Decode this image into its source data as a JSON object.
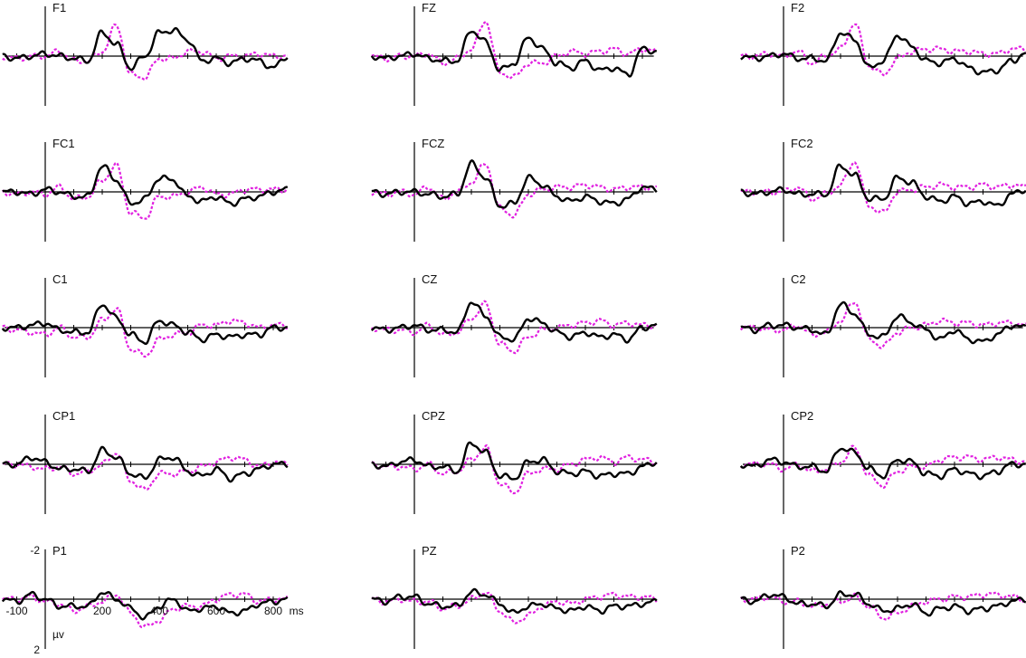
{
  "chart_data": {
    "type": "line",
    "layout": "5x3 grid of ERP panels",
    "colors": {
      "condition_a": "#000000",
      "condition_b": "#e020e0"
    },
    "x_unit": "ms",
    "y_unit": "µv",
    "y_inverted": true,
    "xlim": [
      -100,
      850
    ],
    "ylim": [
      -2,
      2
    ],
    "x_tick_labels": [
      "-100",
      "200",
      "400",
      "600",
      "800"
    ],
    "y_tick_labels": [
      "-2",
      "2"
    ],
    "x_ticks": [
      -100,
      0,
      100,
      200,
      300,
      400,
      500,
      600,
      700,
      800
    ],
    "legend": "none",
    "series_styles": {
      "condition_a": "solid",
      "condition_b": "dotted"
    },
    "channels": [
      "F1",
      "FZ",
      "F2",
      "FC1",
      "FCZ",
      "FC2",
      "C1",
      "CZ",
      "C2",
      "CP1",
      "CPZ",
      "CP2",
      "P1",
      "PZ",
      "P2"
    ],
    "x": [
      -150,
      -100,
      -50,
      0,
      50,
      100,
      150,
      200,
      250,
      300,
      350,
      400,
      450,
      500,
      550,
      600,
      650,
      700,
      750,
      800,
      850
    ],
    "panels": [
      {
        "channel": "F1",
        "condition_a": [
          0,
          0.1,
          0.0,
          -0.1,
          0.0,
          0.1,
          0.2,
          -1.0,
          -0.5,
          0.5,
          0.0,
          -1.0,
          -1.1,
          -0.7,
          0.2,
          0.1,
          0.3,
          0.1,
          0.2,
          0.5,
          0.0
        ],
        "condition_b": [
          0,
          0.1,
          0.0,
          0.0,
          -0.2,
          0.2,
          0.2,
          -0.2,
          -1.3,
          0.8,
          0.9,
          0.1,
          0.1,
          -0.2,
          -0.2,
          0.1,
          0.0,
          0.0,
          -0.1,
          0.0,
          0.0
        ]
      },
      {
        "channel": "FZ",
        "condition_a": [
          0,
          0.1,
          0.0,
          -0.1,
          0.1,
          0.2,
          0.2,
          -1.1,
          -0.6,
          0.6,
          0.3,
          -0.8,
          -0.3,
          0.3,
          0.5,
          0.2,
          0.6,
          0.5,
          0.8,
          -0.3,
          -0.2
        ],
        "condition_b": [
          0,
          0.1,
          0.0,
          0.0,
          -0.1,
          0.3,
          0.1,
          -0.3,
          -1.5,
          0.7,
          0.9,
          0.3,
          0.3,
          0.0,
          -0.2,
          -0.1,
          -0.2,
          -0.3,
          -0.1,
          -0.3,
          -0.2
        ]
      },
      {
        "channel": "F2",
        "condition_a": [
          0,
          0.1,
          0.0,
          -0.1,
          0.1,
          0.1,
          0.2,
          -1.0,
          -0.7,
          0.5,
          0.2,
          -0.9,
          -0.4,
          0.2,
          0.3,
          0.1,
          0.5,
          0.7,
          0.6,
          0.2,
          -0.1
        ],
        "condition_b": [
          0,
          0.0,
          -0.1,
          0.0,
          -0.2,
          0.3,
          0.0,
          -0.3,
          -1.4,
          0.4,
          0.8,
          0.1,
          -0.2,
          -0.3,
          -0.3,
          -0.2,
          -0.2,
          -0.1,
          -0.1,
          -0.3,
          -0.3
        ]
      },
      {
        "channel": "FC1",
        "condition_a": [
          0,
          0.0,
          0.1,
          -0.1,
          0.0,
          0.2,
          0.2,
          -1.1,
          -0.5,
          0.5,
          0.3,
          -0.6,
          -0.5,
          0.2,
          0.4,
          0.2,
          0.5,
          0.3,
          0.2,
          0.0,
          -0.1
        ],
        "condition_b": [
          0,
          0.1,
          0.0,
          0.1,
          -0.2,
          0.3,
          0.2,
          -0.5,
          -1.1,
          0.9,
          1.1,
          0.2,
          0.2,
          0.0,
          -0.2,
          0.1,
          0.1,
          -0.1,
          -0.1,
          -0.1,
          -0.1
        ]
      },
      {
        "channel": "FCZ",
        "condition_a": [
          0,
          0.1,
          0.0,
          0.0,
          0.1,
          0.2,
          0.1,
          -1.2,
          -0.6,
          0.6,
          0.5,
          -0.6,
          -0.3,
          0.2,
          0.4,
          0.2,
          0.4,
          0.5,
          0.3,
          -0.2,
          -0.1
        ],
        "condition_b": [
          0,
          0.1,
          0.0,
          0.1,
          -0.2,
          0.3,
          0.0,
          -0.4,
          -1.2,
          0.7,
          1.0,
          0.1,
          -0.1,
          -0.2,
          -0.2,
          -0.3,
          -0.2,
          -0.1,
          -0.2,
          -0.2,
          -0.2
        ]
      },
      {
        "channel": "FC2",
        "condition_a": [
          0,
          0.1,
          0.0,
          -0.1,
          0.1,
          0.1,
          0.1,
          -1.1,
          -0.7,
          0.3,
          0.3,
          -0.6,
          -0.4,
          0.2,
          0.4,
          0.2,
          0.5,
          0.4,
          0.6,
          0.1,
          -0.1
        ],
        "condition_b": [
          0,
          0.0,
          0.0,
          0.0,
          -0.2,
          0.3,
          0.1,
          -0.3,
          -1.3,
          0.6,
          0.9,
          0.0,
          -0.1,
          -0.2,
          -0.3,
          -0.2,
          -0.2,
          -0.3,
          -0.2,
          -0.3,
          -0.2
        ]
      },
      {
        "channel": "C1",
        "condition_a": [
          0,
          0.0,
          -0.1,
          -0.2,
          0.1,
          0.2,
          0.2,
          -1.0,
          -0.4,
          0.3,
          0.6,
          -0.3,
          -0.1,
          0.2,
          0.5,
          0.3,
          0.4,
          0.3,
          0.3,
          0.0,
          0.0
        ],
        "condition_b": [
          0,
          0.1,
          0.2,
          0.3,
          0.0,
          0.4,
          0.4,
          -0.3,
          -0.8,
          0.9,
          1.2,
          0.5,
          0.3,
          0.2,
          -0.1,
          -0.1,
          -0.3,
          -0.2,
          0.0,
          -0.1,
          -0.1
        ]
      },
      {
        "channel": "CZ",
        "condition_a": [
          0,
          0.1,
          0.0,
          -0.1,
          0.1,
          0.1,
          0.2,
          -1.1,
          -0.5,
          0.4,
          0.5,
          -0.4,
          -0.2,
          0.2,
          0.4,
          0.2,
          0.4,
          0.3,
          0.5,
          0.0,
          -0.1
        ],
        "condition_b": [
          0,
          0.1,
          0.1,
          0.2,
          -0.1,
          0.3,
          0.2,
          -0.4,
          -1.0,
          0.7,
          1.0,
          0.4,
          0.1,
          0.0,
          -0.1,
          -0.2,
          -0.3,
          -0.1,
          -0.2,
          -0.1,
          -0.1
        ]
      },
      {
        "channel": "C2",
        "condition_a": [
          0,
          0.1,
          -0.1,
          -0.1,
          0.0,
          0.1,
          0.3,
          -1.0,
          -0.6,
          0.3,
          0.4,
          -0.5,
          -0.2,
          0.1,
          0.5,
          0.1,
          0.5,
          0.6,
          0.3,
          -0.1,
          0.0
        ],
        "condition_b": [
          0,
          0.0,
          0.1,
          0.1,
          -0.1,
          0.3,
          0.2,
          -0.3,
          -1.1,
          0.5,
          0.8,
          0.2,
          0.0,
          -0.1,
          -0.3,
          -0.2,
          -0.2,
          -0.1,
          -0.2,
          -0.2,
          -0.1
        ]
      },
      {
        "channel": "CP1",
        "condition_a": [
          0,
          0.0,
          -0.3,
          -0.1,
          0.2,
          0.2,
          0.3,
          -0.6,
          -0.3,
          0.4,
          0.6,
          -0.2,
          -0.3,
          0.3,
          0.5,
          0.2,
          0.6,
          0.4,
          0.2,
          0.0,
          0.0
        ],
        "condition_b": [
          0,
          0.0,
          0.1,
          0.2,
          0.1,
          0.4,
          0.3,
          0.0,
          -0.5,
          0.7,
          1.1,
          0.4,
          0.4,
          0.3,
          0.1,
          -0.1,
          -0.3,
          -0.2,
          0.1,
          -0.1,
          0.0
        ]
      },
      {
        "channel": "CPZ",
        "condition_a": [
          0,
          0.1,
          -0.1,
          -0.2,
          0.1,
          0.1,
          0.3,
          -0.9,
          -0.5,
          0.5,
          0.6,
          -0.1,
          -0.2,
          0.3,
          0.4,
          0.3,
          0.5,
          0.4,
          0.4,
          0.1,
          -0.1
        ],
        "condition_b": [
          0,
          0.1,
          0.1,
          0.2,
          0.0,
          0.4,
          0.3,
          -0.2,
          -0.7,
          0.8,
          1.2,
          0.4,
          0.2,
          0.2,
          0.0,
          -0.2,
          -0.3,
          -0.1,
          -0.3,
          -0.2,
          -0.1
        ]
      },
      {
        "channel": "CP2",
        "condition_a": [
          0,
          0.1,
          -0.2,
          -0.1,
          0.1,
          0.1,
          0.3,
          -0.7,
          -0.5,
          0.2,
          0.5,
          -0.2,
          -0.1,
          0.4,
          0.5,
          0.2,
          0.4,
          0.5,
          0.3,
          0.0,
          0.0
        ],
        "condition_b": [
          0,
          0.0,
          0.0,
          0.2,
          0.0,
          0.3,
          0.2,
          -0.1,
          -0.7,
          0.5,
          0.9,
          0.3,
          0.1,
          0.1,
          -0.2,
          -0.3,
          -0.3,
          -0.2,
          -0.3,
          -0.2,
          -0.1
        ]
      },
      {
        "channel": "P1",
        "condition_a": [
          0,
          0.1,
          -0.2,
          0.0,
          0.3,
          0.3,
          0.3,
          -0.3,
          0.0,
          0.4,
          0.8,
          0.3,
          0.0,
          0.5,
          0.4,
          0.3,
          0.6,
          0.5,
          0.2,
          0.1,
          0.0
        ],
        "condition_b": [
          0,
          0.0,
          -0.1,
          0.1,
          0.2,
          0.5,
          0.3,
          0.1,
          -0.2,
          0.6,
          1.2,
          0.9,
          0.4,
          0.3,
          0.3,
          0.0,
          -0.2,
          -0.2,
          0.1,
          0.0,
          0.0
        ]
      },
      {
        "channel": "PZ",
        "condition_a": [
          0,
          0.1,
          -0.1,
          -0.1,
          0.2,
          0.3,
          0.3,
          -0.3,
          -0.2,
          0.2,
          0.6,
          0.3,
          0.2,
          0.4,
          0.5,
          0.3,
          0.5,
          0.3,
          0.3,
          0.2,
          0.1
        ],
        "condition_b": [
          0,
          0.1,
          0.0,
          0.1,
          0.1,
          0.4,
          0.3,
          0.0,
          -0.3,
          0.5,
          1.0,
          0.7,
          0.3,
          0.1,
          0.2,
          0.0,
          -0.1,
          -0.2,
          -0.1,
          -0.1,
          0.0
        ]
      },
      {
        "channel": "P2",
        "condition_a": [
          0,
          0.1,
          -0.2,
          -0.1,
          0.2,
          0.2,
          0.3,
          -0.2,
          -0.2,
          0.2,
          0.5,
          0.4,
          0.2,
          0.6,
          0.4,
          0.3,
          0.5,
          0.4,
          0.3,
          0.1,
          0.0
        ],
        "condition_b": [
          0,
          0.0,
          -0.1,
          0.1,
          0.1,
          0.3,
          0.2,
          0.1,
          -0.1,
          0.3,
          0.8,
          0.6,
          0.3,
          0.1,
          0.0,
          -0.1,
          -0.1,
          -0.2,
          -0.2,
          -0.1,
          0.0
        ]
      }
    ]
  }
}
